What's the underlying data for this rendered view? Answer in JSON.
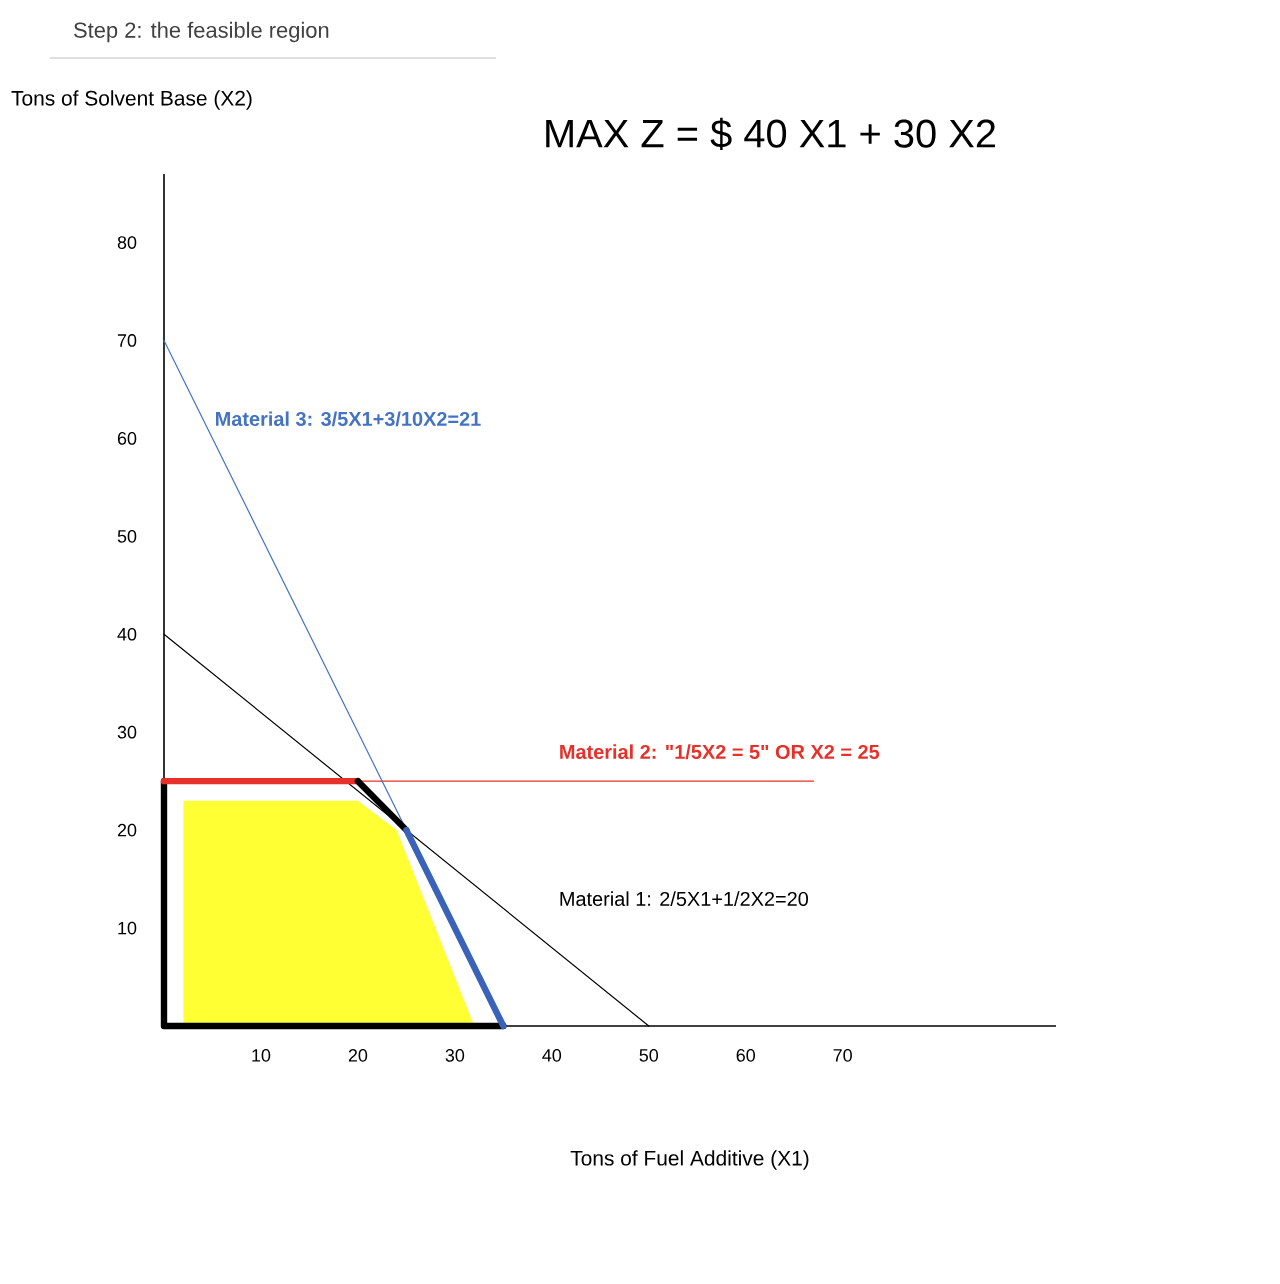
{
  "chart_data": {
    "type": "line",
    "title": "Step 2: the feasible region",
    "subtitle": "MAX Z = $ 40 X1 + 30 X2",
    "xlabel": "Tons of Fuel Additive (X1)",
    "ylabel": "Tons of Solvent Base (X2)",
    "xlim": [
      0,
      92
    ],
    "ylim": [
      0,
      87
    ],
    "xticks": [
      10,
      20,
      30,
      40,
      50,
      60,
      70
    ],
    "yticks": [
      10,
      20,
      30,
      40,
      50,
      60,
      70,
      80
    ],
    "marker": "none",
    "line_style": "solid",
    "annotations": [
      "Material 1: 2/5X1+1/2X2=20",
      "Material 2: \"1/5X2 = 5\" OR  X2 = 25",
      "Material 3: 3/5X1+3/10X2=21"
    ],
    "series": [
      {
        "color": "#000000",
        "x": [
          0,
          50
        ],
        "values": [
          40,
          0
        ]
      },
      {
        "color": "#e8302a",
        "x": [
          0,
          67
        ],
        "values": [
          25,
          25
        ]
      },
      {
        "color": "#4472c4",
        "x": [
          0,
          35
        ],
        "values": [
          70,
          0
        ]
      },
      {
        "type": "area",
        "color": "#ffff33",
        "x": [
          2,
          20,
          24,
          32
        ],
        "values": [
          23,
          23,
          20,
          0
        ]
      },
      {
        "color": "#000000",
        "x": [
          35,
          0,
          0
        ],
        "values": [
          0,
          0,
          25
        ]
      },
      {
        "color": "#e8302a",
        "x": [
          0,
          20
        ],
        "values": [
          25,
          25
        ]
      },
      {
        "color": "#000000",
        "x": [
          20,
          25
        ],
        "values": [
          25,
          20
        ]
      },
      {
        "color": "#3a62b8",
        "x": [
          25,
          35
        ],
        "values": [
          20,
          0
        ]
      }
    ]
  }
}
